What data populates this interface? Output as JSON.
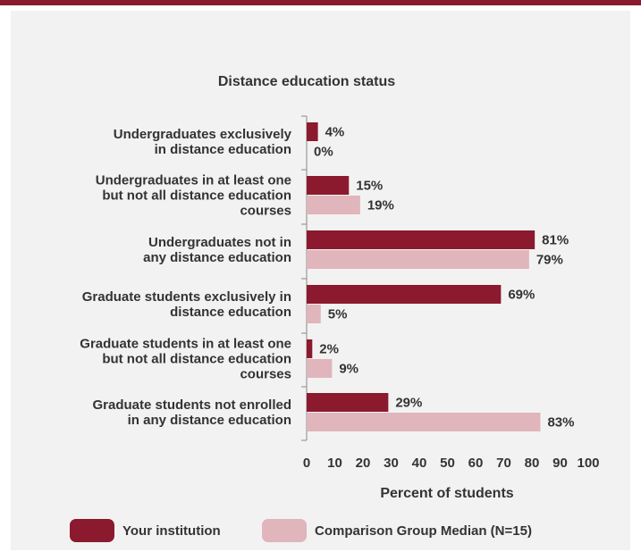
{
  "chart_data": {
    "type": "bar",
    "orientation": "horizontal",
    "title": "Distance education status",
    "xlabel": "Percent of students",
    "ylabel": "",
    "xlim": [
      0,
      100
    ],
    "xticks": [
      "0",
      "10",
      "20",
      "30",
      "40",
      "50",
      "60",
      "70",
      "80",
      "90",
      "100"
    ],
    "grid": false,
    "legend_position": "bottom",
    "categories": [
      [
        "Undergraduates exclusively",
        "in distance education"
      ],
      [
        "Undergraduates in at least one",
        "but not all distance education",
        "courses"
      ],
      [
        "Undergraduates not in",
        "any distance education"
      ],
      [
        "Graduate students exclusively in",
        "distance education"
      ],
      [
        "Graduate students in at least one",
        "but not all distance education",
        "courses"
      ],
      [
        "Graduate students not enrolled",
        "in any distance education"
      ]
    ],
    "series": [
      {
        "name": "Your institution",
        "color": "#8b1a2e",
        "values": [
          4,
          15,
          81,
          69,
          2,
          29
        ],
        "labels": [
          "4%",
          "15%",
          "81%",
          "69%",
          "2%",
          "29%"
        ]
      },
      {
        "name": "Comparison Group Median (N=15)",
        "color": "#e0b5bb",
        "values": [
          0,
          19,
          79,
          5,
          9,
          83
        ],
        "labels": [
          "0%",
          "19%",
          "79%",
          "5%",
          "9%",
          "83%"
        ]
      }
    ]
  }
}
